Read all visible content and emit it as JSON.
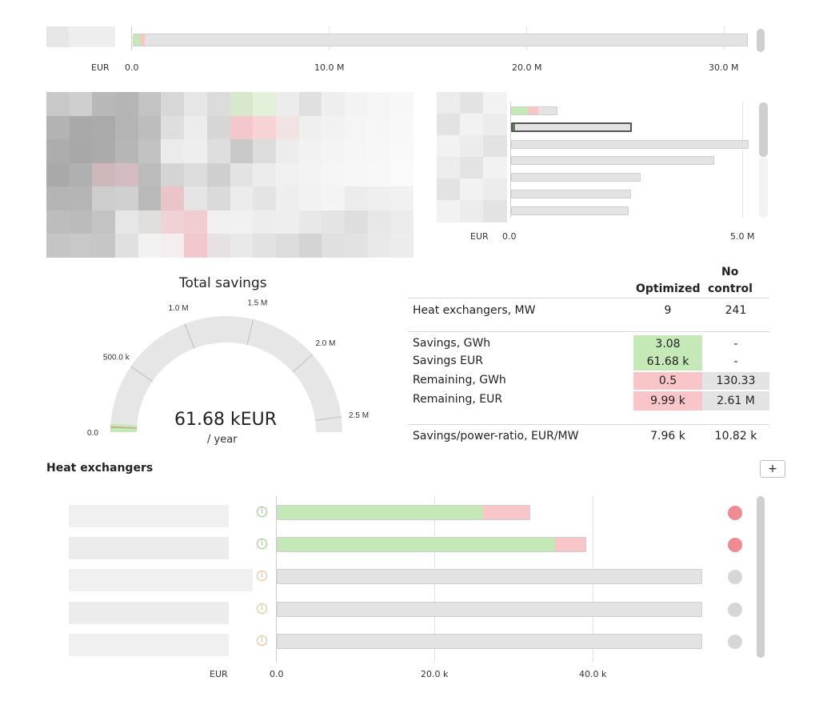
{
  "top_chart": {
    "unit_label": "EUR",
    "ticks": [
      "0.0",
      "10.0 M",
      "20.0 M",
      "30.0 M"
    ],
    "bar_green_value_m": 0.36,
    "bar_red_value_m": 0.26,
    "bar_total_value_m": 31.3
  },
  "side_chart": {
    "unit_label": "EUR",
    "ticks": [
      "0.0",
      "5.0 M"
    ],
    "bars_m": [
      1.0,
      2.62,
      5.14,
      4.4,
      2.8,
      2.6,
      2.55
    ]
  },
  "gauge": {
    "title": "Total savings",
    "value": "61.68 kEUR",
    "unit": "/ year",
    "ticks": [
      "0.0",
      "500.0 k",
      "1.0 M",
      "1.5 M",
      "2.0 M",
      "2.5 M"
    ],
    "max": 2610000,
    "current": 61680
  },
  "kpi_table": {
    "col_optimized": "Optimized",
    "col_no": "No",
    "col_control": "control",
    "row_hx_label": "Heat exchangers, MW",
    "row_hx_opt": "9",
    "row_hx_nc": "241",
    "row_sav_gwh_label": "Savings, GWh",
    "row_sav_gwh_opt": "3.08",
    "row_sav_gwh_nc": "-",
    "row_sav_eur_label": "Savings EUR",
    "row_sav_eur_opt": "61.68 k",
    "row_sav_eur_nc": "-",
    "row_rem_gwh_label": "Remaining, GWh",
    "row_rem_gwh_opt": "0.5",
    "row_rem_gwh_nc": "130.33",
    "row_rem_eur_label": "Remaining, EUR",
    "row_rem_eur_opt": "9.99 k",
    "row_rem_eur_nc": "2.61 M",
    "row_ratio_label": "Savings/power-ratio, EUR/MW",
    "row_ratio_opt": "7.96 k",
    "row_ratio_nc": "10.82 k"
  },
  "heat_exchangers": {
    "section_title": "Heat exchangers",
    "add_button": "+",
    "unit_label": "EUR",
    "ticks": [
      "0.0",
      "20.0 k",
      "40.0 k"
    ],
    "rows": [
      {
        "savings_k": 26.2,
        "remaining_k": 6.0,
        "status": "optimized"
      },
      {
        "savings_k": 35.3,
        "remaining_k": 4.0,
        "status": "optimized"
      },
      {
        "savings_k": 0,
        "remaining_k": 0,
        "total_k": 54.0,
        "status": "no-control"
      },
      {
        "savings_k": 0,
        "remaining_k": 0,
        "total_k": 54.0,
        "status": "no-control"
      },
      {
        "savings_k": 0,
        "remaining_k": 0,
        "total_k": 54.0,
        "status": "no-control"
      }
    ]
  },
  "colors": {
    "savings_green": "#c5e8b7",
    "remaining_red": "#f8c5c9",
    "neutral_bar": "#e3e3e3",
    "info_green": "#8cc97a",
    "info_orange": "#f0b77e",
    "dot_red": "#f08b92",
    "dot_grey": "#d6d6d6"
  }
}
